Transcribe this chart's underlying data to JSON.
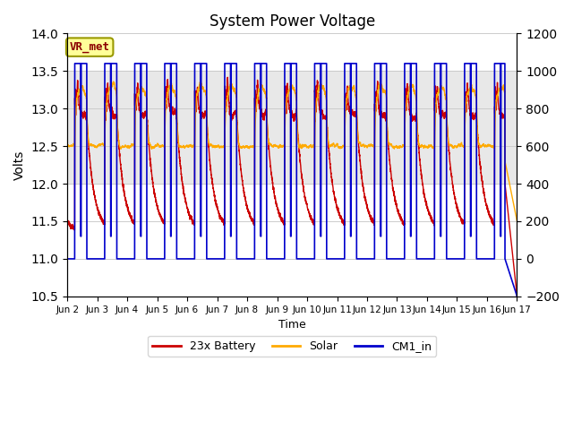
{
  "title": "System Power Voltage",
  "xlabel": "Time",
  "ylabel": "Volts",
  "ylim_left": [
    10.5,
    14.0
  ],
  "ylim_right": [
    -200,
    1200
  ],
  "yticks_left": [
    10.5,
    11.0,
    11.5,
    12.0,
    12.5,
    13.0,
    13.5,
    14.0
  ],
  "yticks_right": [
    -200,
    0,
    200,
    400,
    600,
    800,
    1000,
    1200
  ],
  "xtick_labels": [
    "Jun 2",
    "Jun 3",
    "Jun 4",
    "Jun 5",
    "Jun 6",
    "Jun 7",
    "Jun 8",
    "Jun 9",
    "Jun 10",
    "Jun 11",
    "Jun 12",
    "Jun 13",
    "Jun 14",
    "Jun 15",
    "Jun 16",
    "Jun 17"
  ],
  "color_battery": "#cc0000",
  "color_solar": "#ffaa00",
  "color_cm1": "#0000cc",
  "legend_labels": [
    "23x Battery",
    "Solar",
    "CM1_in"
  ],
  "annotation_text": "VR_met",
  "annotation_bg": "#ffff99",
  "annotation_border": "#999900",
  "shaded_region": [
    12.0,
    13.5
  ],
  "shaded_color": "#e8e8e8",
  "n_days": 15,
  "samples_per_day": 288
}
